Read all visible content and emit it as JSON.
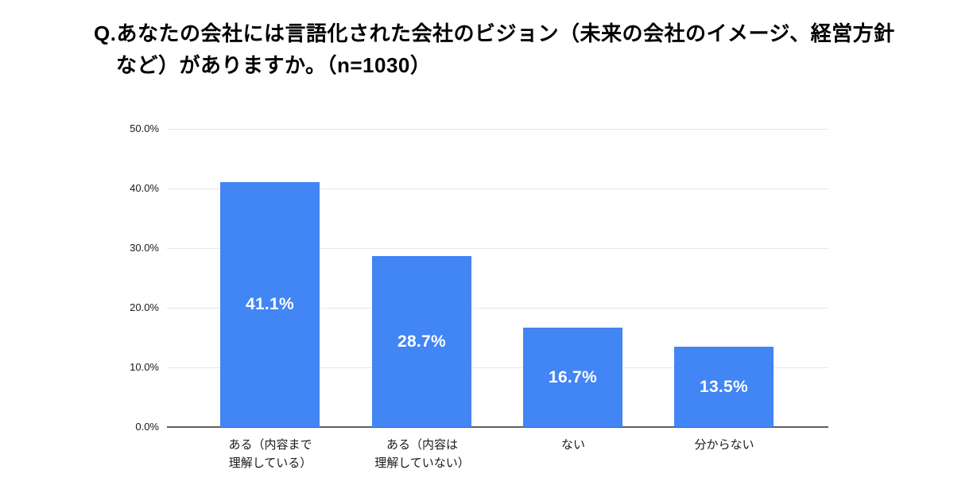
{
  "title": {
    "full": "Q.あなたの会社には言語化された会社のビジョン（未来の会社のイメージ、経営方針など）がありますか。（n=1030）",
    "line1": "Q.あなたの会社には言語化された会社のビジョン（未来の会社のイメージ、経営方針",
    "line2": "など）がありますか。（n=1030）"
  },
  "chart_data": {
    "type": "bar",
    "title": "Q.あなたの会社には言語化された会社のビジョン（未来の会社のイメージ、経営方針など）がありますか。（n=1030）",
    "sample_size": 1030,
    "categories": [
      "ある（内容まで理解している）",
      "ある（内容は理解していない）",
      "ない",
      "分からない"
    ],
    "category_lines": [
      [
        "ある（内容まで",
        "理解している）"
      ],
      [
        "ある（内容は",
        "理解していない）"
      ],
      [
        "ない"
      ],
      [
        "分からない"
      ]
    ],
    "values": [
      41.1,
      28.7,
      16.7,
      13.5
    ],
    "value_labels": [
      "41.1%",
      "28.7%",
      "16.7%",
      "13.5%"
    ],
    "xlabel": "",
    "ylabel": "",
    "ylim": [
      0,
      50
    ],
    "y_ticks": [
      "50.0%",
      "40.0%",
      "30.0%",
      "20.0%",
      "10.0%",
      "0.0%"
    ],
    "y_tick_values": [
      50,
      40,
      30,
      20,
      10,
      0
    ],
    "grid": true,
    "legend_position": "none",
    "colors": {
      "bar": "#4285f4",
      "value_label": "#ffffff",
      "gridline": "#e6e6e6",
      "baseline": "#5f5f5f",
      "text": "#000000",
      "background": "#ffffff"
    }
  }
}
